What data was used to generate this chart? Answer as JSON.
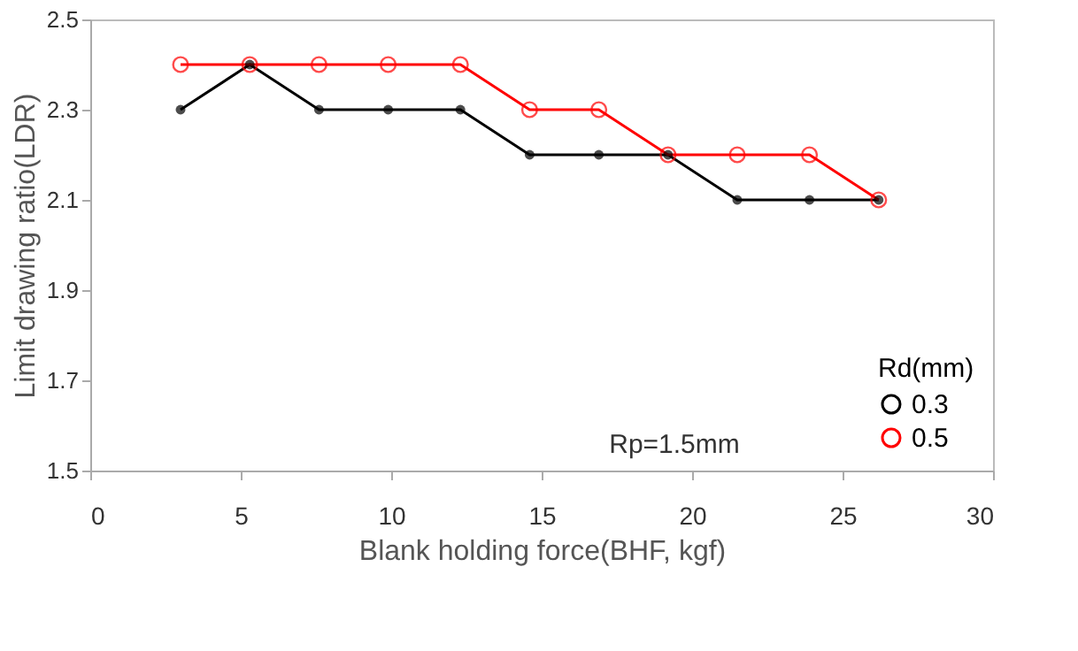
{
  "chart_data": {
    "type": "line",
    "xlabel": "Blank holding force(BHF, kgf)",
    "ylabel": "Limit drawing ratio(LDR)",
    "legend_title": "Rd(mm)",
    "legend": "bottom right",
    "x": [
      3.0,
      5.3,
      7.6,
      9.9,
      12.3,
      14.6,
      16.9,
      19.2,
      21.5,
      23.9,
      26.2
    ],
    "series": [
      {
        "name": "0.3",
        "color": "#000000",
        "line_style": "solid",
        "values": [
          2.3,
          2.4,
          2.3,
          2.3,
          2.3,
          2.2,
          2.2,
          2.2,
          2.1,
          2.1,
          2.1
        ]
      },
      {
        "name": "0.5",
        "color": "#ff0000",
        "line_style": "solid",
        "values": [
          2.4,
          2.4,
          2.4,
          2.4,
          2.4,
          2.3,
          2.3,
          2.2,
          2.2,
          2.2,
          2.1
        ]
      }
    ],
    "xlim": [
      0,
      30
    ],
    "xticks": [
      0,
      5,
      10,
      15,
      20,
      25,
      30
    ],
    "ylim": [
      1.5,
      2.5
    ],
    "yticks": [
      1.5,
      1.7,
      1.9,
      2.1,
      2.3,
      2.5
    ],
    "grid": false,
    "marker": "circle",
    "annotations": [
      "Rp=1.5mm"
    ]
  }
}
